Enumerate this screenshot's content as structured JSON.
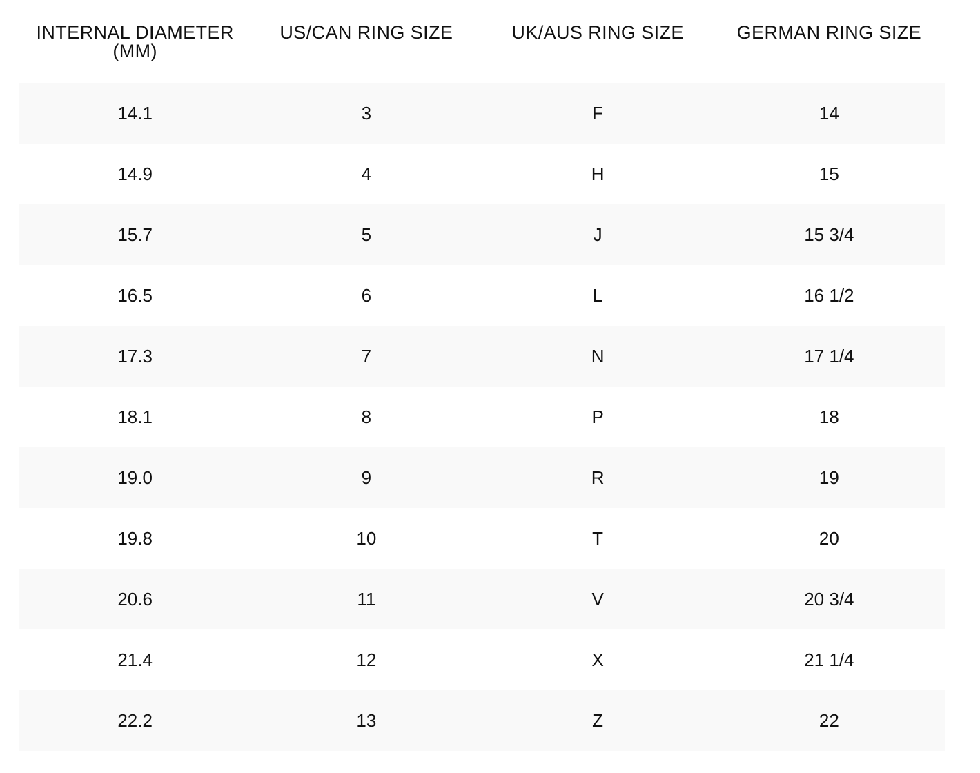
{
  "table": {
    "headers": [
      "INTERNAL DIAMETER (MM)",
      "US/CAN RING SIZE",
      "UK/AUS RING SIZE",
      "GERMAN RING SIZE"
    ],
    "rows": [
      [
        "14.1",
        "3",
        "F",
        "14"
      ],
      [
        "14.9",
        "4",
        "H",
        "15"
      ],
      [
        "15.7",
        "5",
        "J",
        "15 3/4"
      ],
      [
        "16.5",
        "6",
        "L",
        "16 1/2"
      ],
      [
        "17.3",
        "7",
        "N",
        "17 1/4"
      ],
      [
        "18.1",
        "8",
        "P",
        "18"
      ],
      [
        "19.0",
        "9",
        "R",
        "19"
      ],
      [
        "19.8",
        "10",
        "T",
        "20"
      ],
      [
        "20.6",
        "11",
        "V",
        "20 3/4"
      ],
      [
        "21.4",
        "12",
        "X",
        "21 1/4"
      ],
      [
        "22.2",
        "13",
        "Z",
        "22"
      ]
    ]
  },
  "colors": {
    "text": "#111111",
    "shaded_row": "#f9f9f9",
    "background": "#ffffff"
  }
}
